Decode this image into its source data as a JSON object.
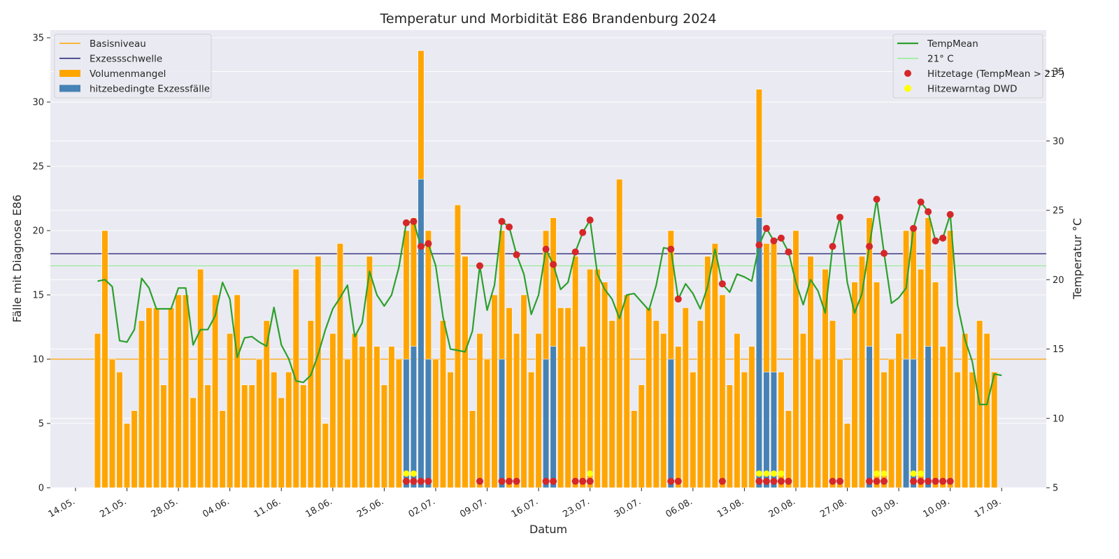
{
  "chart_data": {
    "type": "bar+line",
    "title": "Temperatur und Morbidität E86 Brandenburg 2024",
    "xlabel": "Datum",
    "ylabel": "Fälle mit Diagnose E86",
    "ylabel_right": "Temperatur °C",
    "x_tick_labels": [
      "14.05.",
      "21.05.",
      "28.05.",
      "04.06.",
      "11.06.",
      "18.06.",
      "25.06.",
      "02.07.",
      "09.07.",
      "16.07.",
      "23.07.",
      "30.07.",
      "06.08.",
      "13.08.",
      "20.08.",
      "27.08.",
      "03.09.",
      "10.09.",
      "17.09."
    ],
    "left_ticks": [
      "0",
      "5",
      "10",
      "15",
      "20",
      "25",
      "30",
      "35"
    ],
    "right_ticks": [
      "5",
      "10",
      "15",
      "20",
      "25",
      "30",
      "35"
    ],
    "ylim": [
      0,
      35.6
    ],
    "ylim_right": [
      5,
      38
    ],
    "grid": true,
    "start_date": "2024-05-17",
    "total_cases": [
      12,
      20,
      10,
      9,
      5,
      6,
      13,
      14,
      14,
      8,
      14,
      15,
      15,
      7,
      17,
      8,
      15,
      6,
      12,
      15,
      8,
      8,
      10,
      13,
      9,
      7,
      9,
      17,
      8,
      13,
      18,
      5,
      12,
      19,
      10,
      12,
      11,
      18,
      11,
      8,
      11,
      10,
      20,
      21,
      34,
      20,
      10,
      13,
      9,
      22,
      18,
      6,
      12,
      10,
      15,
      20,
      14,
      12,
      15,
      9,
      12,
      20,
      21,
      14,
      14,
      18,
      11,
      17,
      17,
      16,
      13,
      24,
      15,
      6,
      8,
      14,
      13,
      12,
      20,
      11,
      14,
      9,
      13,
      18,
      19,
      15,
      8,
      12,
      9,
      11,
      31,
      19,
      19,
      9,
      6,
      20,
      12,
      18,
      10,
      17,
      13,
      10,
      5,
      16,
      18,
      21,
      16,
      9,
      10,
      12,
      20,
      20,
      17,
      21,
      16,
      11,
      20,
      9,
      12,
      9,
      13,
      12,
      9
    ],
    "excess_cases": [
      0,
      0,
      0,
      0,
      0,
      0,
      0,
      0,
      0,
      0,
      0,
      0,
      0,
      0,
      0,
      0,
      0,
      0,
      0,
      0,
      0,
      0,
      0,
      0,
      0,
      0,
      0,
      0,
      0,
      0,
      0,
      0,
      0,
      0,
      0,
      0,
      0,
      0,
      0,
      0,
      0,
      0,
      10,
      11,
      24,
      10,
      0,
      0,
      0,
      0,
      0,
      0,
      0,
      0,
      0,
      10,
      0,
      0,
      0,
      0,
      0,
      10,
      11,
      0,
      0,
      0,
      0,
      0,
      0,
      0,
      0,
      0,
      0,
      0,
      0,
      0,
      0,
      0,
      10,
      0,
      0,
      0,
      0,
      0,
      0,
      0,
      0,
      0,
      0,
      0,
      21,
      9,
      9,
      0,
      0,
      0,
      0,
      0,
      0,
      0,
      0,
      0,
      0,
      0,
      0,
      11,
      0,
      0,
      0,
      0,
      10,
      10,
      0,
      11,
      0,
      0,
      0,
      0,
      0,
      0,
      0,
      0,
      0
    ],
    "temp_mean": [
      19.9,
      20.0,
      19.5,
      15.6,
      15.5,
      16.4,
      20.1,
      19.4,
      17.9,
      17.9,
      17.9,
      19.4,
      19.4,
      15.3,
      16.4,
      16.4,
      17.4,
      19.8,
      18.6,
      14.4,
      15.8,
      15.9,
      15.5,
      15.2,
      18.0,
      15.3,
      14.3,
      12.7,
      12.6,
      13.1,
      14.6,
      16.4,
      17.9,
      18.7,
      19.6,
      15.9,
      16.9,
      20.6,
      18.9,
      18.1,
      18.9,
      20.9,
      24.1,
      24.2,
      22.4,
      22.6,
      21.0,
      17.3,
      15.0,
      14.9,
      14.8,
      16.3,
      21.0,
      17.8,
      19.6,
      24.2,
      23.8,
      21.8,
      20.4,
      17.5,
      18.9,
      22.2,
      21.1,
      19.3,
      19.8,
      22.0,
      23.4,
      24.3,
      20.4,
      19.3,
      18.6,
      17.2,
      18.9,
      19.0,
      18.4,
      17.8,
      19.6,
      22.3,
      22.2,
      18.6,
      19.7,
      19.0,
      17.9,
      19.5,
      22.2,
      19.7,
      19.1,
      20.4,
      20.2,
      19.9,
      22.5,
      23.7,
      22.8,
      23.0,
      22.0,
      19.8,
      18.2,
      20.0,
      19.2,
      17.6,
      22.4,
      24.5,
      19.8,
      17.6,
      19.0,
      22.4,
      25.8,
      21.9,
      18.3,
      18.7,
      19.4,
      23.7,
      25.6,
      24.9,
      22.8,
      23.0,
      24.7,
      18.2,
      15.7,
      14.1,
      11.0,
      11.0,
      13.2,
      13.1
    ],
    "hot_days": [
      42,
      43,
      44,
      45,
      52,
      55,
      56,
      57,
      61,
      62,
      65,
      66,
      67,
      78,
      79,
      85,
      90,
      91,
      92,
      93,
      94,
      100,
      101,
      105,
      106,
      107,
      111,
      112,
      113,
      114,
      115,
      116
    ],
    "dwd_warning_days": [
      42,
      43,
      67,
      90,
      91,
      92,
      93,
      106,
      107,
      111,
      112
    ],
    "basis_level": 10,
    "excess_threshold": 18.2,
    "temp_threshold": 21,
    "colors": {
      "background": "#eaeaf2",
      "grid": "#ffffff",
      "volume_bar": "#ffa500",
      "excess_bar": "#4682b4",
      "temp_line": "#2ca02c",
      "threshold_21": "#90ee90",
      "basis_line": "#ffa500",
      "excess_line": "#191970",
      "hot_day_marker": "#d62728",
      "dwd_marker": "#ffff00"
    },
    "legend_left": {
      "placement": "top-left",
      "entries": [
        "Basisniveau",
        "Exzessschwelle",
        "Volumenmangel",
        "hitzebedingte Exzessfälle"
      ]
    },
    "legend_right": {
      "placement": "top-right",
      "entries": [
        "TempMean",
        "21° C",
        "Hitzetage (TempMean > 21°)",
        "Hitzewarntag DWD"
      ]
    }
  }
}
